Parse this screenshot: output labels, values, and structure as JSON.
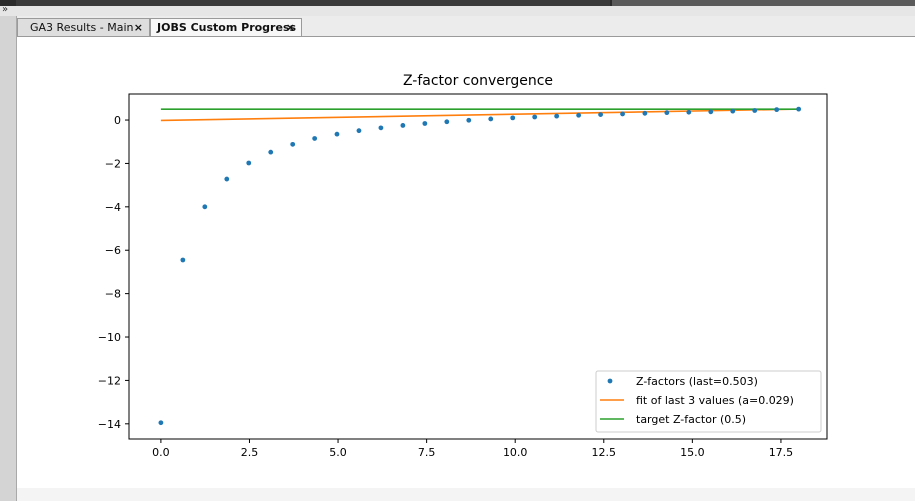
{
  "tabs": [
    {
      "label": "GA3 Results - Main",
      "close": "×",
      "active": false
    },
    {
      "label": "JOBS Custom Progress",
      "close": "×",
      "active": true
    }
  ],
  "icons": {
    "collapse": "chevrons-down-icon",
    "tab_close": "close-icon"
  },
  "chart_data": {
    "type": "scatter",
    "title": "Z-factor convergence",
    "xlabel": "",
    "ylabel": "",
    "xlim": [
      -0.9,
      18.8
    ],
    "ylim": [
      -14.7,
      1.2
    ],
    "xticks": [
      0.0,
      2.5,
      5.0,
      7.5,
      10.0,
      12.5,
      15.0,
      17.5
    ],
    "xtick_labels": [
      "0.0",
      "2.5",
      "5.0",
      "7.5",
      "10.0",
      "12.5",
      "15.0",
      "17.5"
    ],
    "yticks": [
      0,
      -2,
      -4,
      -6,
      -8,
      -10,
      -12,
      -14
    ],
    "ytick_labels": [
      "0",
      "−2",
      "−4",
      "−6",
      "−8",
      "−10",
      "−12",
      "−14"
    ],
    "grid": false,
    "legend_position": "lower-right",
    "series": [
      {
        "name": "Z-factors (last=0.503)",
        "kind": "points",
        "color": "#1f77b4",
        "x": [
          0.0,
          0.62,
          1.24,
          1.86,
          2.48,
          3.1,
          3.72,
          4.34,
          4.97,
          5.59,
          6.21,
          6.83,
          7.45,
          8.07,
          8.69,
          9.31,
          9.93,
          10.55,
          11.17,
          11.79,
          12.41,
          13.03,
          13.66,
          14.28,
          14.9,
          15.52,
          16.14,
          16.76,
          17.38,
          18.0
        ],
        "y": [
          -13.95,
          -6.45,
          -4.0,
          -2.72,
          -1.98,
          -1.48,
          -1.12,
          -0.85,
          -0.65,
          -0.49,
          -0.36,
          -0.25,
          -0.16,
          -0.08,
          -0.01,
          0.05,
          0.1,
          0.14,
          0.18,
          0.22,
          0.25,
          0.28,
          0.31,
          0.34,
          0.36,
          0.38,
          0.41,
          0.44,
          0.48,
          0.503
        ]
      },
      {
        "name": "fit of last 3 values (a=0.029)",
        "kind": "line",
        "color": "#ff7f0e",
        "x": [
          0.0,
          18.0
        ],
        "y": [
          -0.02,
          0.503
        ]
      },
      {
        "name": "target Z-factor (0.5)",
        "kind": "line",
        "color": "#2ca02c",
        "x": [
          0.0,
          18.0
        ],
        "y": [
          0.5,
          0.5
        ]
      }
    ]
  }
}
